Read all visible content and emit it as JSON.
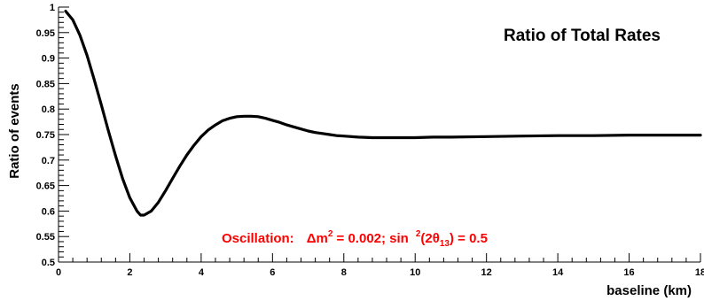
{
  "chart_data": {
    "type": "line",
    "title": "Ratio of Total Rates",
    "xlabel": "baseline (km)",
    "ylabel": "Ratio of events",
    "xlim": [
      0,
      18
    ],
    "ylim": [
      0.5,
      1.0
    ],
    "x_ticks": [
      0,
      2,
      4,
      6,
      8,
      10,
      12,
      14,
      16,
      18
    ],
    "x_tick_labels": [
      "0",
      "2",
      "4",
      "6",
      "8",
      "10",
      "12",
      "14",
      "16",
      "18"
    ],
    "y_ticks": [
      0.5,
      0.55,
      0.6,
      0.65,
      0.7,
      0.75,
      0.8,
      0.85,
      0.9,
      0.95,
      1.0
    ],
    "y_tick_labels": [
      "0.5",
      "0.55",
      "0.6",
      "0.65",
      "0.7",
      "0.75",
      "0.8",
      "0.85",
      "0.9",
      "0.95",
      "1"
    ],
    "grid": false,
    "annotation": {
      "prefix": "Oscillation:",
      "delta": "Δm",
      "sup2": "2",
      "mid": " = 0.002; sin",
      "sup2b": "2",
      "theta_open": "(2θ",
      "theta_sub": "13",
      "close": ") = 0.5",
      "color": "#ff0000"
    },
    "series": [
      {
        "color": "#000000",
        "x": [
          0.2,
          0.4,
          0.6,
          0.8,
          1.0,
          1.2,
          1.4,
          1.6,
          1.8,
          2.0,
          2.2,
          2.3,
          2.4,
          2.6,
          2.8,
          3.0,
          3.2,
          3.4,
          3.6,
          3.8,
          4.0,
          4.2,
          4.4,
          4.6,
          4.8,
          5.0,
          5.2,
          5.4,
          5.6,
          5.8,
          6.0,
          6.2,
          6.4,
          6.6,
          6.8,
          7.0,
          7.2,
          7.4,
          7.6,
          7.8,
          8.0,
          8.4,
          8.8,
          9.2,
          9.6,
          10.0,
          10.5,
          11.0,
          12.0,
          13.0,
          14.0,
          15.0,
          16.0,
          17.0,
          18.0
        ],
        "y": [
          0.992,
          0.975,
          0.945,
          0.905,
          0.858,
          0.808,
          0.757,
          0.708,
          0.663,
          0.626,
          0.6,
          0.592,
          0.592,
          0.6,
          0.617,
          0.64,
          0.664,
          0.688,
          0.71,
          0.729,
          0.746,
          0.759,
          0.769,
          0.777,
          0.782,
          0.785,
          0.786,
          0.786,
          0.785,
          0.782,
          0.778,
          0.774,
          0.769,
          0.765,
          0.761,
          0.757,
          0.754,
          0.752,
          0.75,
          0.748,
          0.747,
          0.745,
          0.744,
          0.744,
          0.744,
          0.744,
          0.745,
          0.745,
          0.746,
          0.747,
          0.748,
          0.748,
          0.749,
          0.749,
          0.749
        ]
      }
    ]
  }
}
